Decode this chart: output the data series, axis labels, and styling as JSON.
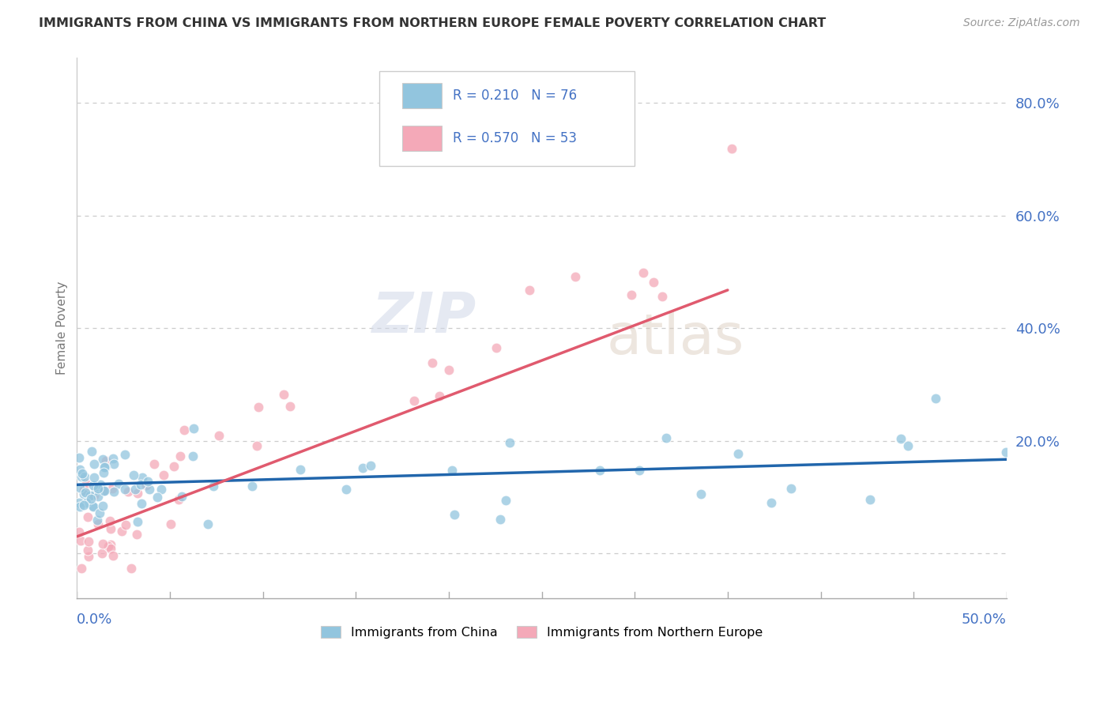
{
  "title": "IMMIGRANTS FROM CHINA VS IMMIGRANTS FROM NORTHERN EUROPE FEMALE POVERTY CORRELATION CHART",
  "source": "Source: ZipAtlas.com",
  "ylabel": "Female Poverty",
  "y_ticks": [
    0.0,
    0.2,
    0.4,
    0.6,
    0.8
  ],
  "y_tick_labels": [
    "",
    "20.0%",
    "40.0%",
    "60.0%",
    "80.0%"
  ],
  "x_range": [
    0.0,
    0.5
  ],
  "y_range": [
    -0.08,
    0.88
  ],
  "color_china": "#92c5de",
  "color_ne": "#f4a9b8",
  "trendline_china_color": "#2166ac",
  "trendline_ne_color": "#e05a6e",
  "watermark_zip": "ZIP",
  "watermark_atlas": "atlas",
  "background_color": "#ffffff",
  "grid_color": "#cccccc",
  "legend_text_color": "#4472c4",
  "tick_color": "#4472c4",
  "title_color": "#333333",
  "source_color": "#999999"
}
